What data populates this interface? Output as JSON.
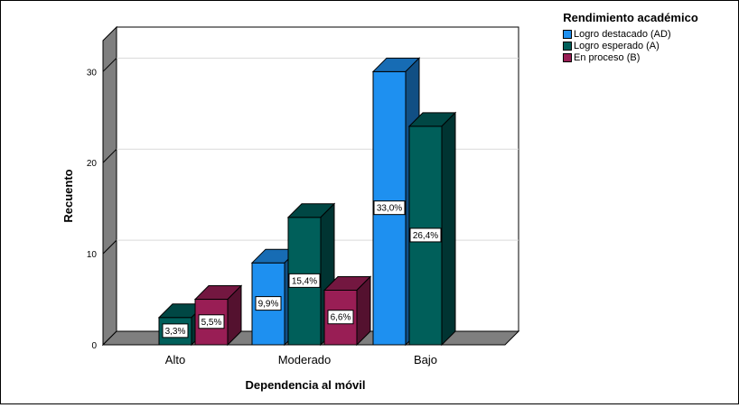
{
  "chart_data": {
    "type": "bar",
    "title": "",
    "xlabel": "Dependencia al móvil",
    "ylabel": "Recuento",
    "categories": [
      "Alto",
      "Moderado",
      "Bajo"
    ],
    "ylim": [
      0,
      32
    ],
    "yticks": [
      0,
      10,
      20,
      30
    ],
    "grid": true,
    "legend_position": "top-right",
    "legend_title": "Rendimiento académico",
    "series": [
      {
        "name": "Logro destacado (AD)",
        "color": "#1e90f0",
        "values": [
          0,
          9,
          30
        ],
        "labels": [
          "",
          "9,9%",
          "33,0%"
        ]
      },
      {
        "name": "Logro esperado (A)",
        "color": "#005f5a",
        "values": [
          3,
          14,
          24
        ],
        "labels": [
          "3,3%",
          "15,4%",
          "26,4%"
        ]
      },
      {
        "name": "En proceso (B)",
        "color": "#991e55",
        "values": [
          5,
          6,
          0
        ],
        "labels": [
          "5,5%",
          "6,6%",
          ""
        ]
      }
    ]
  }
}
